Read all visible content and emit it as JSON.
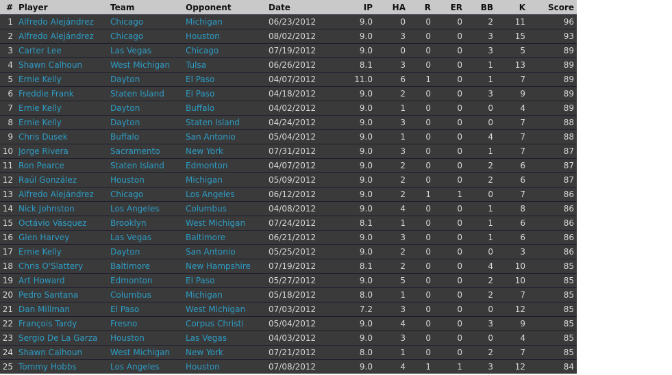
{
  "columns": [
    "#",
    "Player",
    "Team",
    "Opponent",
    "Date",
    "IP",
    "HA",
    "R",
    "ER",
    "BB",
    "K",
    "Score"
  ],
  "rows": [
    [
      "1",
      "Alfredo Alejándrez",
      "Chicago",
      "Michigan",
      "06/23/2012",
      "9.0",
      "0",
      "0",
      "0",
      "2",
      "11",
      "96"
    ],
    [
      "2",
      "Alfredo Alejándrez",
      "Chicago",
      "Houston",
      "08/02/2012",
      "9.0",
      "3",
      "0",
      "0",
      "3",
      "15",
      "93"
    ],
    [
      "3",
      "Carter Lee",
      "Las Vegas",
      "Chicago",
      "07/19/2012",
      "9.0",
      "0",
      "0",
      "0",
      "3",
      "5",
      "89"
    ],
    [
      "4",
      "Shawn Calhoun",
      "West Michigan",
      "Tulsa",
      "06/26/2012",
      "8.1",
      "3",
      "0",
      "0",
      "1",
      "13",
      "89"
    ],
    [
      "5",
      "Ernie Kelly",
      "Dayton",
      "El Paso",
      "04/07/2012",
      "11.0",
      "6",
      "1",
      "0",
      "1",
      "7",
      "89"
    ],
    [
      "6",
      "Freddie Frank",
      "Staten Island",
      "El Paso",
      "04/18/2012",
      "9.0",
      "2",
      "0",
      "0",
      "3",
      "9",
      "89"
    ],
    [
      "7",
      "Ernie Kelly",
      "Dayton",
      "Buffalo",
      "04/02/2012",
      "9.0",
      "1",
      "0",
      "0",
      "0",
      "4",
      "89"
    ],
    [
      "8",
      "Ernie Kelly",
      "Dayton",
      "Staten Island",
      "04/24/2012",
      "9.0",
      "3",
      "0",
      "0",
      "0",
      "7",
      "88"
    ],
    [
      "9",
      "Chris Dusek",
      "Buffalo",
      "San Antonio",
      "05/04/2012",
      "9.0",
      "1",
      "0",
      "0",
      "4",
      "7",
      "88"
    ],
    [
      "10",
      "Jorge Rivera",
      "Sacramento",
      "New York",
      "07/31/2012",
      "9.0",
      "3",
      "0",
      "0",
      "1",
      "7",
      "87"
    ],
    [
      "11",
      "Ron Pearce",
      "Staten Island",
      "Edmonton",
      "04/07/2012",
      "9.0",
      "2",
      "0",
      "0",
      "2",
      "6",
      "87"
    ],
    [
      "12",
      "Raúl González",
      "Houston",
      "Michigan",
      "05/09/2012",
      "9.0",
      "2",
      "0",
      "0",
      "2",
      "6",
      "87"
    ],
    [
      "13",
      "Alfredo Alejándrez",
      "Chicago",
      "Los Angeles",
      "06/12/2012",
      "9.0",
      "2",
      "1",
      "1",
      "0",
      "7",
      "86"
    ],
    [
      "14",
      "Nick Johnston",
      "Los Angeles",
      "Columbus",
      "04/08/2012",
      "9.0",
      "4",
      "0",
      "0",
      "1",
      "8",
      "86"
    ],
    [
      "15",
      "Octávio Vásquez",
      "Brooklyn",
      "West Michigan",
      "07/24/2012",
      "8.1",
      "1",
      "0",
      "0",
      "1",
      "6",
      "86"
    ],
    [
      "16",
      "Glen Harvey",
      "Las Vegas",
      "Baltimore",
      "06/21/2012",
      "9.0",
      "3",
      "0",
      "0",
      "1",
      "6",
      "86"
    ],
    [
      "17",
      "Ernie Kelly",
      "Dayton",
      "San Antonio",
      "05/25/2012",
      "9.0",
      "2",
      "0",
      "0",
      "0",
      "3",
      "86"
    ],
    [
      "18",
      "Chris O'Slattery",
      "Baltimore",
      "New Hampshire",
      "07/19/2012",
      "8.1",
      "2",
      "0",
      "0",
      "4",
      "10",
      "85"
    ],
    [
      "19",
      "Art Howard",
      "Edmonton",
      "El Paso",
      "05/27/2012",
      "9.0",
      "5",
      "0",
      "0",
      "2",
      "10",
      "85"
    ],
    [
      "20",
      "Pedro Santana",
      "Columbus",
      "Michigan",
      "05/18/2012",
      "8.0",
      "1",
      "0",
      "0",
      "2",
      "7",
      "85"
    ],
    [
      "21",
      "Dan Millman",
      "El Paso",
      "West Michigan",
      "07/03/2012",
      "7.2",
      "3",
      "0",
      "0",
      "0",
      "12",
      "85"
    ],
    [
      "22",
      "François Tardy",
      "Fresno",
      "Corpus Christi",
      "05/04/2012",
      "9.0",
      "4",
      "0",
      "0",
      "3",
      "9",
      "85"
    ],
    [
      "23",
      "Sergio De La Garza",
      "Houston",
      "Las Vegas",
      "04/03/2012",
      "9.0",
      "3",
      "0",
      "0",
      "0",
      "4",
      "85"
    ],
    [
      "24",
      "Shawn Calhoun",
      "West Michigan",
      "New York",
      "07/21/2012",
      "8.0",
      "1",
      "0",
      "0",
      "2",
      "7",
      "85"
    ],
    [
      "25",
      "Tommy Hobbs",
      "Los Angeles",
      "Houston",
      "07/08/2012",
      "9.0",
      "4",
      "1",
      "1",
      "3",
      "12",
      "84"
    ]
  ]
}
